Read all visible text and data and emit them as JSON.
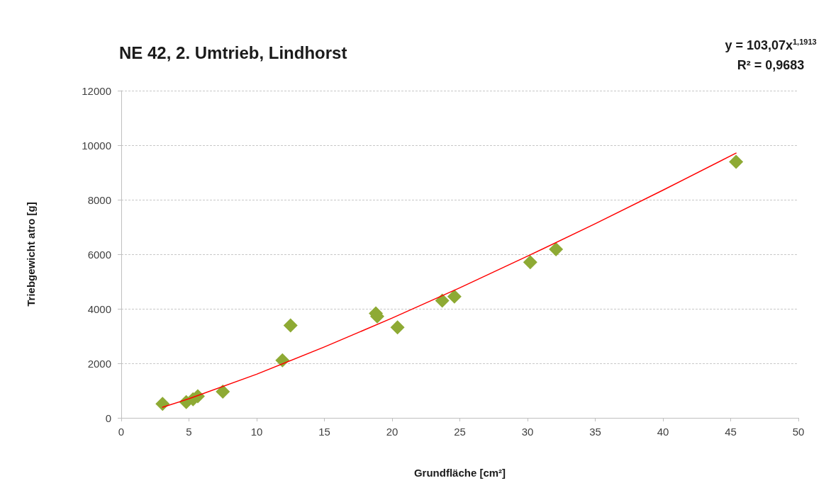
{
  "chart_data": {
    "type": "scatter",
    "title": "NE 42, 2. Umtrieb, Lindhorst",
    "xlabel": "Grundfläche [cm²]",
    "ylabel": "Triebgewicht atro [g]",
    "annotations": [
      "y = 103,07x$^{1,1913}$",
      "R² = 0,9683"
    ],
    "series": [
      {
        "color": "#8eaa34",
        "x": [
          3.05,
          4.8,
          5.3,
          5.65,
          7.5,
          11.9,
          12.5,
          18.8,
          18.9,
          20.4,
          23.7,
          24.6,
          30.2,
          32.1,
          45.4
        ],
        "values": [
          510,
          580,
          680,
          790,
          960,
          2110,
          3390,
          3830,
          3720,
          3320,
          4300,
          4450,
          5710,
          6180,
          9390
        ]
      },
      {
        "type": "line",
        "color": "#ff0000",
        "marker": "none",
        "line_style": "solid",
        "x": [
          3.05,
          5,
          10,
          15,
          20,
          25,
          30,
          35,
          40,
          45.4
        ],
        "values": [
          390,
          700,
          1600,
          2600,
          3660,
          4770,
          5930,
          7120,
          8350,
          9710
        ]
      }
    ],
    "marker": "diamond",
    "xlim": [
      0,
      50
    ],
    "xticks": [
      0,
      5,
      10,
      15,
      20,
      25,
      30,
      35,
      40,
      45,
      50
    ],
    "ylim": [
      0,
      12000
    ],
    "yticks": [
      0,
      2000,
      4000,
      6000,
      8000,
      10000,
      12000
    ],
    "grid": "y"
  }
}
